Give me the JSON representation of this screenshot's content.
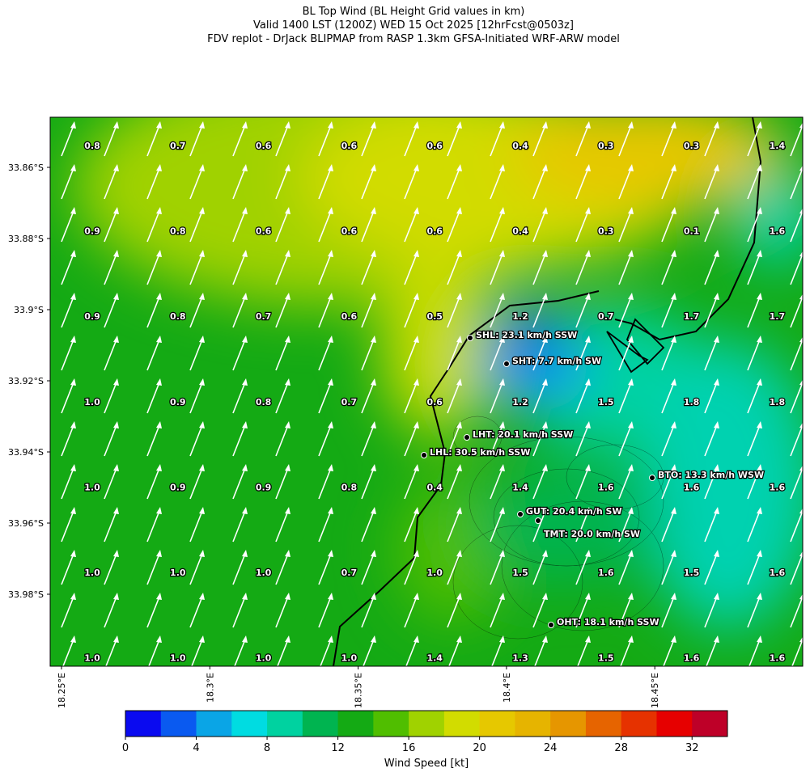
{
  "header": {
    "title": "BL Top Wind (BL Height Grid values in km)",
    "subtitle": "Valid 1400 LST (1200Z) WED 15 Oct 2025 [12hrFcst@0503z]",
    "source": "FDV replot - DrJack BLIPMAP from RASP 1.3km GFSA-Initiated WRF-ARW model"
  },
  "map": {
    "lat_labels": [
      "33.86°S",
      "33.88°S",
      "33.9°S",
      "33.92°S",
      "33.94°S",
      "33.96°S",
      "33.98°S"
    ],
    "lon_labels": [
      "18.25°E",
      "18.3°E",
      "18.35°E",
      "18.4°E",
      "18.45°E"
    ],
    "grid_values": [
      [
        "0.8",
        "0.7",
        "0.6",
        "0.6",
        "0.6",
        "0.4",
        "0.3",
        "0.3",
        "1.4"
      ],
      [
        "0.9",
        "0.8",
        "0.6",
        "0.6",
        "0.6",
        "0.4",
        "0.3",
        "0.1",
        "1.6"
      ],
      [
        "0.9",
        "0.8",
        "0.7",
        "0.6",
        "0.5",
        "1.2",
        "0.7",
        "1.7",
        "1.7"
      ],
      [
        "1.0",
        "0.9",
        "0.8",
        "0.7",
        "0.6",
        "1.2",
        "1.5",
        "1.8",
        "1.8"
      ],
      [
        "1.0",
        "0.9",
        "0.9",
        "0.8",
        "0.4",
        "1.4",
        "1.6",
        "1.6",
        "1.6"
      ],
      [
        "1.0",
        "1.0",
        "1.0",
        "0.7",
        "1.0",
        "1.5",
        "1.6",
        "1.5",
        "1.6"
      ],
      [
        "1.0",
        "1.0",
        "1.0",
        "1.0",
        "1.4",
        "1.3",
        "1.5",
        "1.6",
        "1.6"
      ]
    ],
    "stations": [
      "SHL: 23.1 km/h SSW",
      "SHT: 7.7 km/h SW",
      "LHT: 20.1 km/h SSW",
      "LHL: 30.5 km/h SSW",
      "BTO: 13.3 km/h WSW",
      "GUT: 20.4 km/h SW",
      "TMT: 20.0 km/h SW",
      "OHT: 18.1 km/h SSW"
    ]
  },
  "colorbar": {
    "label": "Wind Speed [kt]",
    "lim": [
      0,
      34
    ],
    "ticks": [
      0,
      4,
      8,
      12,
      16,
      20,
      24,
      28,
      32
    ],
    "colors": [
      "#0a0af0",
      "#0a5af0",
      "#0aa5e6",
      "#00dce1",
      "#00d2a0",
      "#00b450",
      "#14aa14",
      "#50be00",
      "#a0d200",
      "#d2dc00",
      "#e6c800",
      "#e6b400",
      "#e69600",
      "#e66400",
      "#e63200",
      "#e60000",
      "#be0028"
    ]
  }
}
